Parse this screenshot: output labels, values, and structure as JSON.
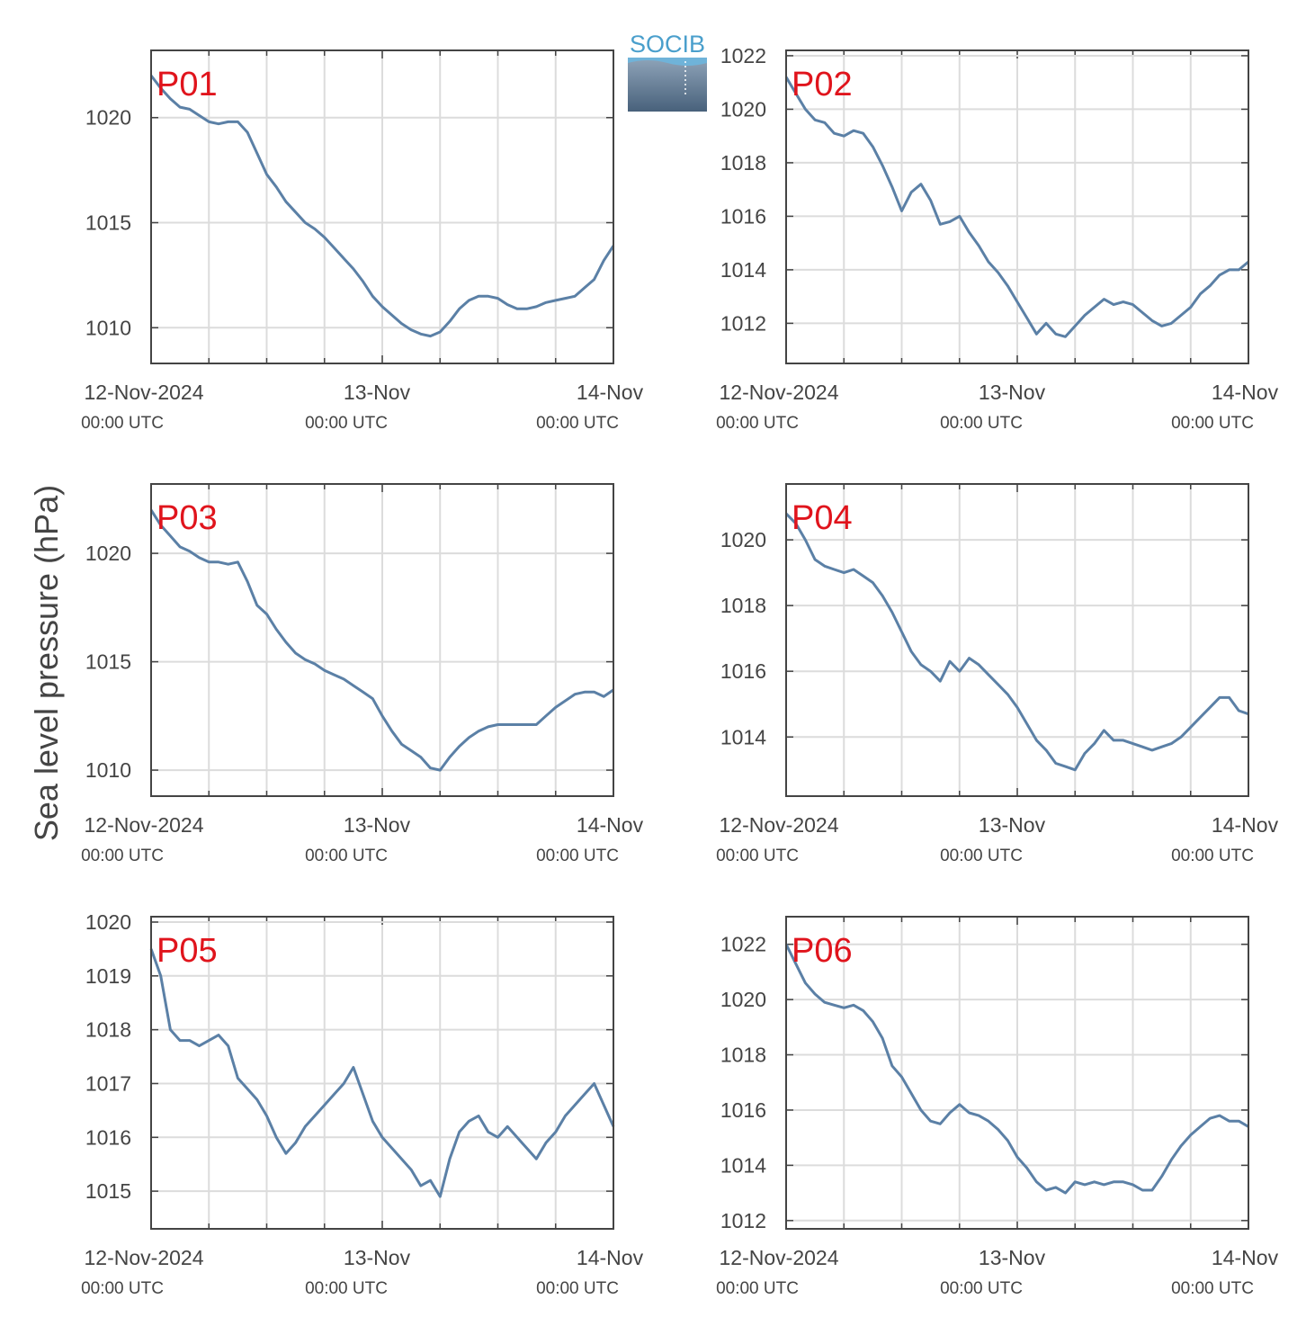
{
  "figure": {
    "ylabel": "Sea level pressure (hPa)",
    "logo_text": "SOCIB",
    "colors": {
      "series": "#5b80a6",
      "panel_label": "#e0141c",
      "axis": "#444444",
      "grid": "#dcdcdc"
    }
  },
  "chart_data": [
    {
      "type": "line",
      "panel": "P01",
      "x_tick_labels": [
        [
          "12-Nov-2024",
          "00:00 UTC"
        ],
        [
          "13-Nov",
          "00:00 UTC"
        ],
        [
          "14-Nov",
          "00:00 UTC"
        ]
      ],
      "xlim_hours": [
        0,
        48
      ],
      "ylim": [
        1008.3,
        1023.2
      ],
      "yticks": [
        1010,
        1015,
        1020
      ],
      "series": [
        {
          "x_hours": [
            0,
            1,
            2,
            3,
            4,
            5,
            6,
            7,
            8,
            9,
            10,
            11,
            12,
            13,
            14,
            15,
            16,
            17,
            18,
            19,
            20,
            21,
            22,
            23,
            24,
            25,
            26,
            27,
            28,
            29,
            30,
            31,
            32,
            33,
            34,
            35,
            36,
            37,
            38,
            39,
            40,
            41,
            42,
            43,
            44,
            45,
            46,
            47,
            48
          ],
          "values": [
            1022,
            1021.4,
            1020.9,
            1020.5,
            1020.4,
            1020.1,
            1019.8,
            1019.7,
            1019.8,
            1019.8,
            1019.3,
            1018.3,
            1017.3,
            1016.7,
            1016.0,
            1015.5,
            1015.0,
            1014.7,
            1014.3,
            1013.8,
            1013.3,
            1012.8,
            1012.2,
            1011.5,
            1011.0,
            1010.6,
            1010.2,
            1009.9,
            1009.7,
            1009.6,
            1009.8,
            1010.3,
            1010.9,
            1011.3,
            1011.5,
            1011.5,
            1011.4,
            1011.1,
            1010.9,
            1010.9,
            1011.0,
            1011.2,
            1011.3,
            1011.4,
            1011.5,
            1011.9,
            1012.3,
            1013.2,
            1013.9
          ]
        }
      ]
    },
    {
      "type": "line",
      "panel": "P02",
      "x_tick_labels": [
        [
          "12-Nov-2024",
          "00:00 UTC"
        ],
        [
          "13-Nov",
          "00:00 UTC"
        ],
        [
          "14-Nov",
          "00:00 UTC"
        ]
      ],
      "xlim_hours": [
        0,
        48
      ],
      "ylim": [
        1010.5,
        1022.2
      ],
      "yticks": [
        1012,
        1014,
        1016,
        1018,
        1020,
        1022
      ],
      "series": [
        {
          "x_hours": [
            0,
            1,
            2,
            3,
            4,
            5,
            6,
            7,
            8,
            9,
            10,
            11,
            12,
            13,
            14,
            15,
            16,
            17,
            18,
            19,
            20,
            21,
            22,
            23,
            24,
            25,
            26,
            27,
            28,
            29,
            30,
            31,
            32,
            33,
            34,
            35,
            36,
            37,
            38,
            39,
            40,
            41,
            42,
            43,
            44,
            45,
            46,
            47,
            48
          ],
          "values": [
            1021.2,
            1020.6,
            1020.0,
            1019.6,
            1019.5,
            1019.1,
            1019.0,
            1019.2,
            1019.1,
            1018.6,
            1017.9,
            1017.1,
            1016.2,
            1016.9,
            1017.2,
            1016.6,
            1015.7,
            1015.8,
            1016.0,
            1015.4,
            1014.9,
            1014.3,
            1013.9,
            1013.4,
            1012.8,
            1012.2,
            1011.6,
            1012.0,
            1011.6,
            1011.5,
            1011.9,
            1012.3,
            1012.6,
            1012.9,
            1012.7,
            1012.8,
            1012.7,
            1012.4,
            1012.1,
            1011.9,
            1012.0,
            1012.3,
            1012.6,
            1013.1,
            1013.4,
            1013.8,
            1014.0,
            1014.0,
            1014.3
          ]
        }
      ]
    },
    {
      "type": "line",
      "panel": "P03",
      "x_tick_labels": [
        [
          "12-Nov-2024",
          "00:00 UTC"
        ],
        [
          "13-Nov",
          "00:00 UTC"
        ],
        [
          "14-Nov",
          "00:00 UTC"
        ]
      ],
      "xlim_hours": [
        0,
        48
      ],
      "ylim": [
        1008.8,
        1023.2
      ],
      "yticks": [
        1010,
        1015,
        1020
      ],
      "series": [
        {
          "x_hours": [
            0,
            1,
            2,
            3,
            4,
            5,
            6,
            7,
            8,
            9,
            10,
            11,
            12,
            13,
            14,
            15,
            16,
            17,
            18,
            19,
            20,
            21,
            22,
            23,
            24,
            25,
            26,
            27,
            28,
            29,
            30,
            31,
            32,
            33,
            34,
            35,
            36,
            37,
            38,
            39,
            40,
            41,
            42,
            43,
            44,
            45,
            46,
            47,
            48
          ],
          "values": [
            1022,
            1021.3,
            1020.8,
            1020.3,
            1020.1,
            1019.8,
            1019.6,
            1019.6,
            1019.5,
            1019.6,
            1018.7,
            1017.6,
            1017.2,
            1016.5,
            1015.9,
            1015.4,
            1015.1,
            1014.9,
            1014.6,
            1014.4,
            1014.2,
            1013.9,
            1013.6,
            1013.3,
            1012.5,
            1011.8,
            1011.2,
            1010.9,
            1010.6,
            1010.1,
            1010.0,
            1010.6,
            1011.1,
            1011.5,
            1011.8,
            1012.0,
            1012.1,
            1012.1,
            1012.1,
            1012.1,
            1012.1,
            1012.5,
            1012.9,
            1013.2,
            1013.5,
            1013.6,
            1013.6,
            1013.4,
            1013.7
          ]
        }
      ]
    },
    {
      "type": "line",
      "panel": "P04",
      "x_tick_labels": [
        [
          "12-Nov-2024",
          "00:00 UTC"
        ],
        [
          "13-Nov",
          "00:00 UTC"
        ],
        [
          "14-Nov",
          "00:00 UTC"
        ]
      ],
      "xlim_hours": [
        0,
        48
      ],
      "ylim": [
        1012.2,
        1021.7
      ],
      "yticks": [
        1014,
        1016,
        1018,
        1020
      ],
      "series": [
        {
          "x_hours": [
            0,
            1,
            2,
            3,
            4,
            5,
            6,
            7,
            8,
            9,
            10,
            11,
            12,
            13,
            14,
            15,
            16,
            17,
            18,
            19,
            20,
            21,
            22,
            23,
            24,
            25,
            26,
            27,
            28,
            29,
            30,
            31,
            32,
            33,
            34,
            35,
            36,
            37,
            38,
            39,
            40,
            41,
            42,
            43,
            44,
            45,
            46,
            47,
            48
          ],
          "values": [
            1020.8,
            1020.5,
            1020.0,
            1019.4,
            1019.2,
            1019.1,
            1019.0,
            1019.1,
            1018.9,
            1018.7,
            1018.3,
            1017.8,
            1017.2,
            1016.6,
            1016.2,
            1016.0,
            1015.7,
            1016.3,
            1016.0,
            1016.4,
            1016.2,
            1015.9,
            1015.6,
            1015.3,
            1014.9,
            1014.4,
            1013.9,
            1013.6,
            1013.2,
            1013.1,
            1013.0,
            1013.5,
            1013.8,
            1014.2,
            1013.9,
            1013.9,
            1013.8,
            1013.7,
            1013.6,
            1013.7,
            1013.8,
            1014.0,
            1014.3,
            1014.6,
            1014.9,
            1015.2,
            1015.2,
            1014.8,
            1014.7
          ]
        }
      ]
    },
    {
      "type": "line",
      "panel": "P05",
      "x_tick_labels": [
        [
          "12-Nov-2024",
          "00:00 UTC"
        ],
        [
          "13-Nov",
          "00:00 UTC"
        ],
        [
          "14-Nov",
          "00:00 UTC"
        ]
      ],
      "xlim_hours": [
        0,
        48
      ],
      "ylim": [
        1014.3,
        1020.1
      ],
      "yticks": [
        1015,
        1016,
        1017,
        1018,
        1019,
        1020
      ],
      "series": [
        {
          "x_hours": [
            0,
            1,
            2,
            3,
            4,
            5,
            6,
            7,
            8,
            9,
            10,
            11,
            12,
            13,
            14,
            15,
            16,
            17,
            18,
            19,
            20,
            21,
            22,
            23,
            24,
            25,
            26,
            27,
            28,
            29,
            30,
            31,
            32,
            33,
            34,
            35,
            36,
            37,
            38,
            39,
            40,
            41,
            42,
            43,
            44,
            45,
            46,
            47,
            48
          ],
          "values": [
            1019.5,
            1019.0,
            1018.0,
            1017.8,
            1017.8,
            1017.7,
            1017.8,
            1017.9,
            1017.7,
            1017.1,
            1016.9,
            1016.7,
            1016.4,
            1016.0,
            1015.7,
            1015.9,
            1016.2,
            1016.4,
            1016.6,
            1016.8,
            1017.0,
            1017.3,
            1016.8,
            1016.3,
            1016.0,
            1015.8,
            1015.6,
            1015.4,
            1015.1,
            1015.2,
            1014.9,
            1015.6,
            1016.1,
            1016.3,
            1016.4,
            1016.1,
            1016.0,
            1016.2,
            1016.0,
            1015.8,
            1015.6,
            1015.9,
            1016.1,
            1016.4,
            1016.6,
            1016.8,
            1017.0,
            1016.6,
            1016.2
          ]
        }
      ]
    },
    {
      "type": "line",
      "panel": "P06",
      "x_tick_labels": [
        [
          "12-Nov-2024",
          "00:00 UTC"
        ],
        [
          "13-Nov",
          "00:00 UTC"
        ],
        [
          "14-Nov",
          "00:00 UTC"
        ]
      ],
      "xlim_hours": [
        0,
        48
      ],
      "ylim": [
        1011.7,
        1023.0
      ],
      "yticks": [
        1012,
        1014,
        1016,
        1018,
        1020,
        1022
      ],
      "series": [
        {
          "x_hours": [
            0,
            1,
            2,
            3,
            4,
            5,
            6,
            7,
            8,
            9,
            10,
            11,
            12,
            13,
            14,
            15,
            16,
            17,
            18,
            19,
            20,
            21,
            22,
            23,
            24,
            25,
            26,
            27,
            28,
            29,
            30,
            31,
            32,
            33,
            34,
            35,
            36,
            37,
            38,
            39,
            40,
            41,
            42,
            43,
            44,
            45,
            46,
            47,
            48
          ],
          "values": [
            1022,
            1021.3,
            1020.6,
            1020.2,
            1019.9,
            1019.8,
            1019.7,
            1019.8,
            1019.6,
            1019.2,
            1018.6,
            1017.6,
            1017.2,
            1016.6,
            1016.0,
            1015.6,
            1015.5,
            1015.9,
            1016.2,
            1015.9,
            1015.8,
            1015.6,
            1015.3,
            1014.9,
            1014.3,
            1013.9,
            1013.4,
            1013.1,
            1013.2,
            1013.0,
            1013.4,
            1013.3,
            1013.4,
            1013.3,
            1013.4,
            1013.4,
            1013.3,
            1013.1,
            1013.1,
            1013.6,
            1014.2,
            1014.7,
            1015.1,
            1015.4,
            1015.7,
            1015.8,
            1015.6,
            1015.6,
            1015.4
          ]
        }
      ]
    }
  ]
}
